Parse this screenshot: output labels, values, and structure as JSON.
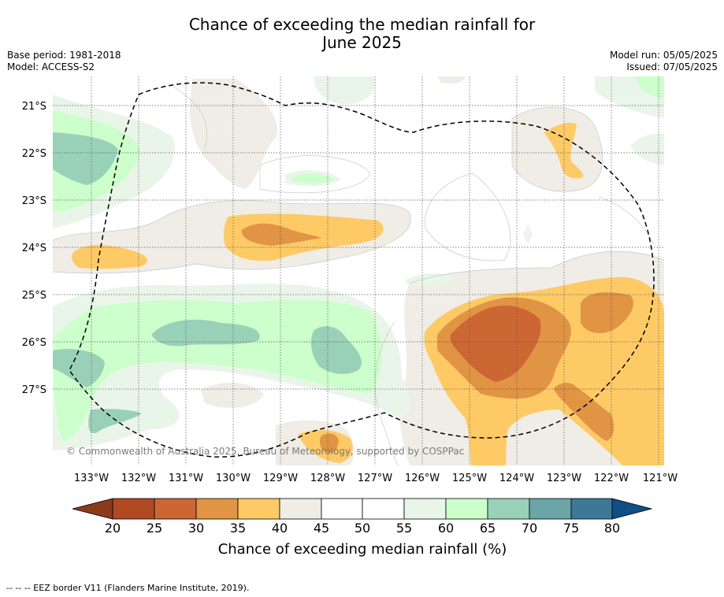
{
  "title_line1": "Chance of exceeding the median rainfall for",
  "title_line2": "June 2025",
  "base_period": "Base period: 1981-2018",
  "model": "Model: ACCESS-S2",
  "model_run": "Model run: 05/05/2025",
  "issued": "Issued: 07/05/2025",
  "copyright": "© Commonwealth of Australia 2025, Bureau of Meteorology, supported by COSPPac",
  "lat_labels": [
    "21°S",
    "22°S",
    "23°S",
    "24°S",
    "25°S",
    "26°S",
    "27°S"
  ],
  "lon_labels": [
    "133°W",
    "132°W",
    "131°W",
    "130°W",
    "129°W",
    "128°W",
    "127°W",
    "126°W",
    "125°W",
    "124°W",
    "123°W",
    "122°W",
    "121°W"
  ],
  "colorbar": {
    "ticks": [
      "20",
      "25",
      "30",
      "35",
      "40",
      "45",
      "50",
      "55",
      "60",
      "65",
      "70",
      "75",
      "80"
    ],
    "label": "Chance of exceeding median rainfall (%)",
    "colors": {
      "lt20": "#8c3a1c",
      "20-25": "#b04a22",
      "25-30": "#cc6633",
      "30-35": "#e09444",
      "35-40": "#fdca66",
      "40-45": "#f0ece6",
      "45-50": "#ffffff",
      "50-55": "#ffffff",
      "55-60": "#eaf5ea",
      "60-65": "#ccffcc",
      "65-70": "#99d1b8",
      "70-75": "#6ba5a5",
      "75-80": "#3e7896",
      "gt80": "#0f4f85"
    }
  },
  "footer": "--  --  -- EEZ border V11 (Flanders Marine Institute, 2019)."
}
